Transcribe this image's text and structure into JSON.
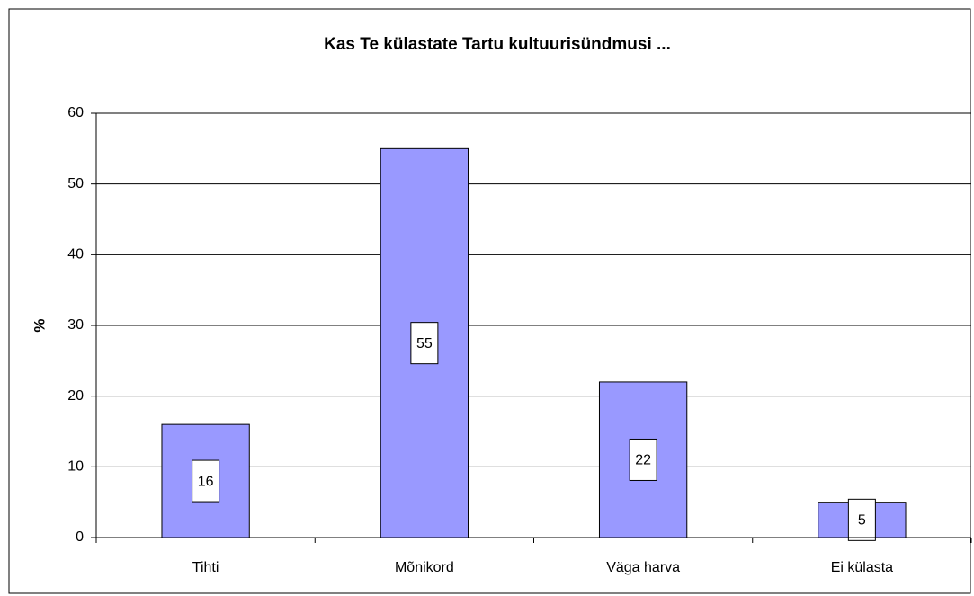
{
  "chart_data": {
    "type": "bar",
    "title": "Kas Te külastate Tartu kultuurisündmusi ...",
    "y_label": "%",
    "categories": [
      "Tihti",
      "Mõnikord",
      "Väga harva",
      "Ei külasta"
    ],
    "values": [
      16,
      55,
      22,
      5
    ],
    "color": "#9999ff",
    "ylim": [
      0,
      60
    ],
    "yticks": [
      0,
      10,
      20,
      30,
      40,
      50,
      60
    ],
    "grid": true
  }
}
